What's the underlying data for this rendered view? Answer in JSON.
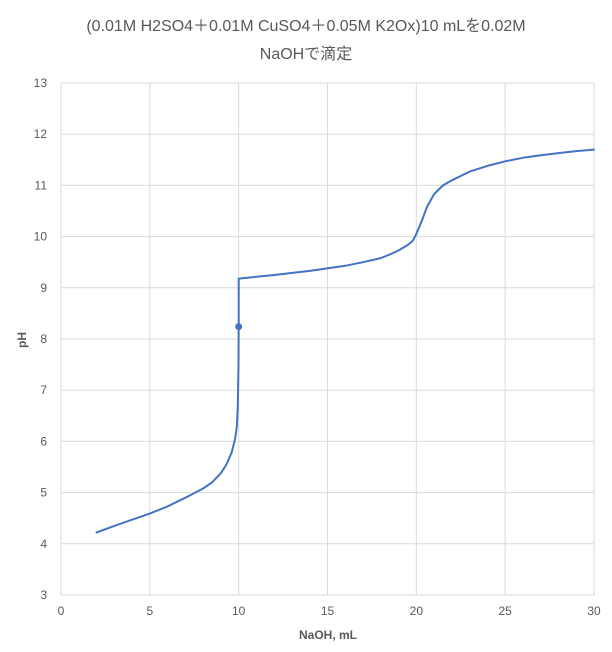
{
  "chart_data": {
    "type": "line",
    "title_line1": "(0.01M H2SO4＋0.01M CuSO4＋0.05M K2Ox)10 mLを0.02M",
    "title_line2": "NaOHで滴定",
    "xlabel": "NaOH, mL",
    "ylabel": "pH",
    "xlim": [
      0,
      30
    ],
    "ylim": [
      3,
      13
    ],
    "xticks": [
      0,
      5,
      10,
      15,
      20,
      25,
      30
    ],
    "yticks": [
      3,
      4,
      5,
      6,
      7,
      8,
      9,
      10,
      11,
      12,
      13
    ],
    "grid": true,
    "legend": "none",
    "line_color": "#4472C4",
    "series": [
      {
        "x": [
          2,
          3,
          4,
          5,
          6,
          7,
          8,
          8.5,
          9,
          9.3,
          9.6,
          9.8,
          9.9,
          9.95,
          9.99,
          10.0,
          10.0,
          10.0,
          12,
          14,
          16,
          17,
          18,
          18.5,
          19,
          19.5,
          19.8,
          20,
          20.3,
          20.6,
          21,
          21.5,
          22,
          23,
          24,
          25,
          26,
          27,
          28,
          29,
          30
        ],
        "y": [
          4.22,
          4.35,
          4.47,
          4.59,
          4.73,
          4.9,
          5.08,
          5.2,
          5.38,
          5.54,
          5.78,
          6.05,
          6.3,
          6.7,
          7.5,
          8.3,
          9.0,
          9.18,
          9.25,
          9.33,
          9.43,
          9.5,
          9.58,
          9.65,
          9.73,
          9.83,
          9.92,
          10.05,
          10.3,
          10.58,
          10.83,
          11.0,
          11.1,
          11.27,
          11.38,
          11.47,
          11.54,
          11.59,
          11.63,
          11.67,
          11.7
        ]
      }
    ],
    "markers": [
      {
        "x": 10,
        "y": 8.24
      }
    ]
  }
}
